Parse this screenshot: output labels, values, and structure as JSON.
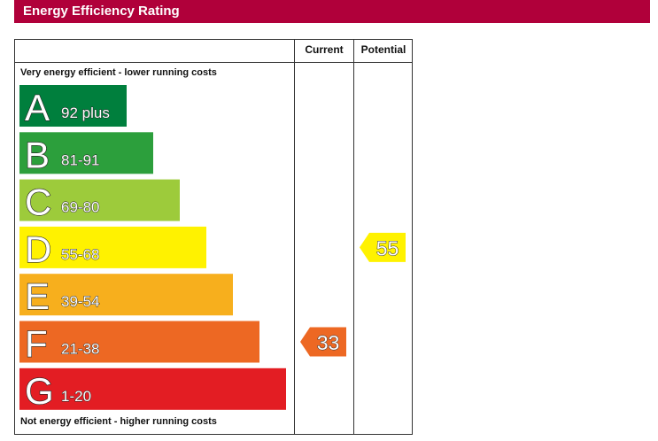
{
  "header": {
    "title": "Energy Efficiency Rating"
  },
  "columns": {
    "current": "Current",
    "potential": "Potential"
  },
  "notes": {
    "top": "Very energy efficient - lower running costs",
    "bottom": "Not energy efficient - higher running costs"
  },
  "chart_data": {
    "type": "bar",
    "categories": [
      "A",
      "B",
      "C",
      "D",
      "E",
      "F",
      "G"
    ],
    "ranges": [
      "92 plus",
      "81-91",
      "69-80",
      "55-68",
      "39-54",
      "21-38",
      "1-20"
    ],
    "colors": [
      "#007f3d",
      "#2c9f3c",
      "#9dcb3b",
      "#fff200",
      "#f7af1d",
      "#ed6823",
      "#e31d23"
    ],
    "current": {
      "value": 33,
      "band": "F",
      "color": "#ed6823"
    },
    "potential": {
      "value": 55,
      "band": "D",
      "color": "#fff200"
    }
  }
}
